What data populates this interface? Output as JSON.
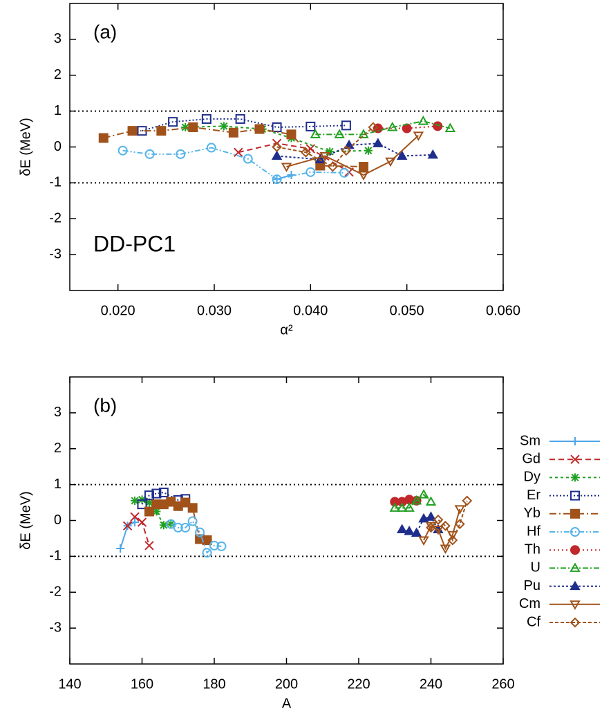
{
  "chart_data": [
    {
      "type": "line",
      "xlabel": "α²",
      "ylabel": "δE (MeV)",
      "annotations": [
        "(a)",
        "DD-PC1"
      ],
      "xlim": [
        0.015,
        0.06
      ],
      "ylim": [
        -4,
        4
      ],
      "xticks": [
        {
          "value": 0.02,
          "label": "0.020"
        },
        {
          "value": 0.03,
          "label": "0.030"
        },
        {
          "value": 0.04,
          "label": "0.040"
        },
        {
          "value": 0.05,
          "label": "0.050"
        },
        {
          "value": 0.06,
          "label": "0.060"
        }
      ],
      "yticks": [
        -3,
        -2,
        -1,
        0,
        1,
        2,
        3
      ],
      "hlines": [
        1,
        -1
      ],
      "legend": false,
      "series": [
        {
          "color": "#4da6e8",
          "marker": "plus",
          "dash": "",
          "x": [
            0.0365,
            0.038
          ],
          "values": [
            -0.9,
            -0.78
          ]
        },
        {
          "color": "#c0282a",
          "marker": "x",
          "dash": "8,5",
          "x": [
            0.0325,
            0.0365,
            0.04,
            0.044
          ],
          "values": [
            -0.15,
            0.1,
            -0.05,
            -0.7
          ]
        },
        {
          "color": "#22a022",
          "marker": "star",
          "dash": "4,4",
          "x": [
            0.027,
            0.031,
            0.035,
            0.038,
            0.042,
            0.046
          ],
          "values": [
            0.55,
            0.58,
            0.5,
            0.25,
            -0.13,
            -0.1
          ]
        },
        {
          "color": "#1f2e8c",
          "marker": "square-open",
          "dash": "2,3",
          "x": [
            0.0225,
            0.0257,
            0.0292,
            0.0327,
            0.0365,
            0.04,
            0.0437
          ],
          "values": [
            0.45,
            0.7,
            0.78,
            0.78,
            0.55,
            0.57,
            0.6
          ]
        },
        {
          "color": "#a0521a",
          "marker": "square",
          "dash": "10,4,2,4",
          "x": [
            0.0185,
            0.0215,
            0.0245,
            0.0278,
            0.032,
            0.0347,
            0.038,
            0.041,
            0.0455
          ],
          "values": [
            0.25,
            0.45,
            0.45,
            0.55,
            0.4,
            0.5,
            0.35,
            -0.52,
            -0.55
          ]
        },
        {
          "color": "#56b4e9",
          "marker": "circle-open",
          "dash": "8,3,2,3,2,3",
          "x": [
            0.0205,
            0.0233,
            0.0265,
            0.0297,
            0.0335,
            0.0365,
            0.04,
            0.0435
          ],
          "values": [
            -0.1,
            -0.2,
            -0.2,
            -0.02,
            -0.33,
            -0.9,
            -0.7,
            -0.72
          ]
        },
        {
          "color": "#c0282a",
          "marker": "circle",
          "dash": "2,4",
          "x": [
            0.047,
            0.05,
            0.0532
          ],
          "values": [
            0.52,
            0.52,
            0.58
          ]
        },
        {
          "color": "#22a022",
          "marker": "triangle-open",
          "dash": "8,3,2,3",
          "x": [
            0.0405,
            0.043,
            0.0455,
            0.0485,
            0.0517,
            0.0545
          ],
          "values": [
            0.35,
            0.35,
            0.35,
            0.55,
            0.72,
            0.52
          ]
        },
        {
          "color": "#1f2e8c",
          "marker": "triangle",
          "dash": "3,3",
          "x": [
            0.0365,
            0.041,
            0.044,
            0.047,
            0.0495,
            0.0527
          ],
          "values": [
            -0.25,
            -0.35,
            0.05,
            0.1,
            -0.25,
            -0.22
          ]
        },
        {
          "color": "#a0521a",
          "marker": "triangle-down-open",
          "dash": "",
          "x": [
            0.0375,
            0.0415,
            0.0455,
            0.0483,
            0.0512
          ],
          "values": [
            -0.55,
            -0.25,
            -0.78,
            -0.4,
            0.32
          ]
        },
        {
          "color": "#a0521a",
          "marker": "diamond-open",
          "dash": "5,3",
          "x": [
            0.0365,
            0.0395,
            0.0423,
            0.0437,
            0.0465
          ],
          "values": [
            0.0,
            -0.15,
            -0.55,
            -0.1,
            0.55
          ]
        }
      ]
    },
    {
      "type": "line",
      "xlabel": "A",
      "ylabel": "δE (MeV)",
      "annotations": [
        "(b)"
      ],
      "xlim": [
        140,
        260
      ],
      "ylim": [
        -4,
        4
      ],
      "xticks": [
        140,
        160,
        180,
        200,
        220,
        240,
        260
      ],
      "yticks": [
        -3,
        -2,
        -1,
        0,
        1,
        2,
        3
      ],
      "hlines": [
        1,
        -1
      ],
      "legend": true,
      "series": [
        {
          "name": "Sm",
          "color": "#4da6e8",
          "marker": "plus",
          "dash": "",
          "x": [
            154,
            156,
            158
          ],
          "values": [
            -0.78,
            -0.15,
            -0.05
          ]
        },
        {
          "name": "Gd",
          "color": "#c0282a",
          "marker": "x",
          "dash": "8,5",
          "x": [
            156,
            158,
            160,
            162
          ],
          "values": [
            -0.15,
            0.1,
            -0.05,
            -0.7
          ]
        },
        {
          "name": "Dy",
          "color": "#22a022",
          "marker": "star",
          "dash": "4,4",
          "x": [
            158,
            160,
            162,
            164,
            166,
            168
          ],
          "values": [
            0.55,
            0.58,
            0.5,
            0.25,
            -0.13,
            -0.1
          ]
        },
        {
          "name": "Er",
          "color": "#1f2e8c",
          "marker": "square-open",
          "dash": "2,3",
          "x": [
            160,
            162,
            164,
            166,
            170,
            172
          ],
          "values": [
            0.45,
            0.7,
            0.75,
            0.78,
            0.57,
            0.6
          ]
        },
        {
          "name": "Yb",
          "color": "#a0521a",
          "marker": "square",
          "dash": "10,4,2,4",
          "x": [
            162,
            164,
            166,
            168,
            170,
            172,
            174,
            176,
            178
          ],
          "values": [
            0.25,
            0.45,
            0.45,
            0.52,
            0.4,
            0.5,
            0.35,
            -0.52,
            -0.55
          ]
        },
        {
          "name": "Hf",
          "color": "#56b4e9",
          "marker": "circle-open",
          "dash": "8,3,2,3,2,3",
          "x": [
            168,
            170,
            172,
            174,
            176,
            178,
            180,
            182
          ],
          "values": [
            -0.1,
            -0.2,
            -0.2,
            -0.02,
            -0.33,
            -0.9,
            -0.7,
            -0.72
          ]
        },
        {
          "name": "Th",
          "color": "#c0282a",
          "marker": "circle",
          "dash": "2,4",
          "x": [
            230,
            232,
            234,
            236
          ],
          "values": [
            0.52,
            0.52,
            0.58,
            0.55
          ]
        },
        {
          "name": "U",
          "color": "#22a022",
          "marker": "triangle-open",
          "dash": "8,3,2,3",
          "x": [
            230,
            232,
            234,
            236,
            238,
            240
          ],
          "values": [
            0.35,
            0.35,
            0.35,
            0.55,
            0.72,
            0.52
          ]
        },
        {
          "name": "Pu",
          "color": "#1f2e8c",
          "marker": "triangle",
          "dash": "3,3",
          "x": [
            232,
            234,
            236,
            238,
            240,
            242
          ],
          "values": [
            -0.25,
            -0.3,
            -0.35,
            0.05,
            0.1,
            -0.25
          ]
        },
        {
          "name": "Cm",
          "color": "#a0521a",
          "marker": "triangle-down-open",
          "dash": "",
          "x": [
            238,
            240,
            242,
            244,
            246,
            248
          ],
          "values": [
            -0.55,
            -0.15,
            -0.25,
            -0.78,
            -0.4,
            0.32
          ]
        },
        {
          "name": "Cf",
          "color": "#a0521a",
          "marker": "diamond-open",
          "dash": "5,3",
          "x": [
            240,
            242,
            244,
            246,
            248,
            250
          ],
          "values": [
            -0.2,
            0.02,
            -0.15,
            -0.55,
            -0.1,
            0.55
          ]
        }
      ]
    }
  ]
}
